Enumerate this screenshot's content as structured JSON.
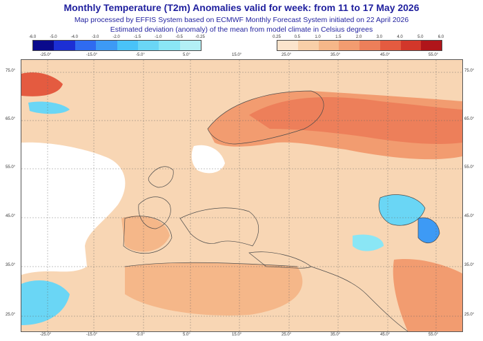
{
  "header": {
    "title": "Monthly Temperature (T2m) Anomalies valid for week: from 11 to 17 May 2026",
    "subtitle1": "Map processed by EFFIS System based on ECMWF Monthly Forecast System initiated on 22 April 2026",
    "subtitle2": "Estimated deviation (anomaly) of the mean from model climate in Celsius degrees"
  },
  "legend": {
    "negative_ticks": [
      "-6.0",
      "-5.0",
      "-4.0",
      "-3.0",
      "-2.0",
      "-1.5",
      "-1.0",
      "-0.5",
      "-0.25"
    ],
    "negative_colors": [
      "#0a0a8c",
      "#1c2fd4",
      "#2f6bf0",
      "#3d9af5",
      "#49c3f8",
      "#6ad6f5",
      "#8ae6f5",
      "#b3f0f5"
    ],
    "positive_ticks": [
      "0.25",
      "0.5",
      "1.0",
      "1.5",
      "2.0",
      "3.0",
      "4.0",
      "5.0",
      "6.0"
    ],
    "positive_colors": [
      "#fbe4cc",
      "#f8cfa8",
      "#f5b789",
      "#f29c70",
      "#ed7f5a",
      "#e45b40",
      "#d2372a",
      "#b0151a"
    ]
  },
  "axes": {
    "lon_labels": [
      "-25.0°",
      "-15.0°",
      "-5.0°",
      "5.0°",
      "15.0°",
      "25.0°",
      "35.0°",
      "45.0°",
      "55.0°"
    ],
    "lat_labels": [
      "75.0°",
      "65.0°",
      "55.0°",
      "45.0°",
      "35.0°",
      "25.0°"
    ]
  },
  "colors": {
    "land_base": "#f8d6b4",
    "sea_base": "#fbe4cc",
    "warm_strong": "#f29c70",
    "warm_very_strong": "#ed7f5a",
    "cool": "#6ad6f5",
    "cool_strong": "#3d9af5"
  }
}
